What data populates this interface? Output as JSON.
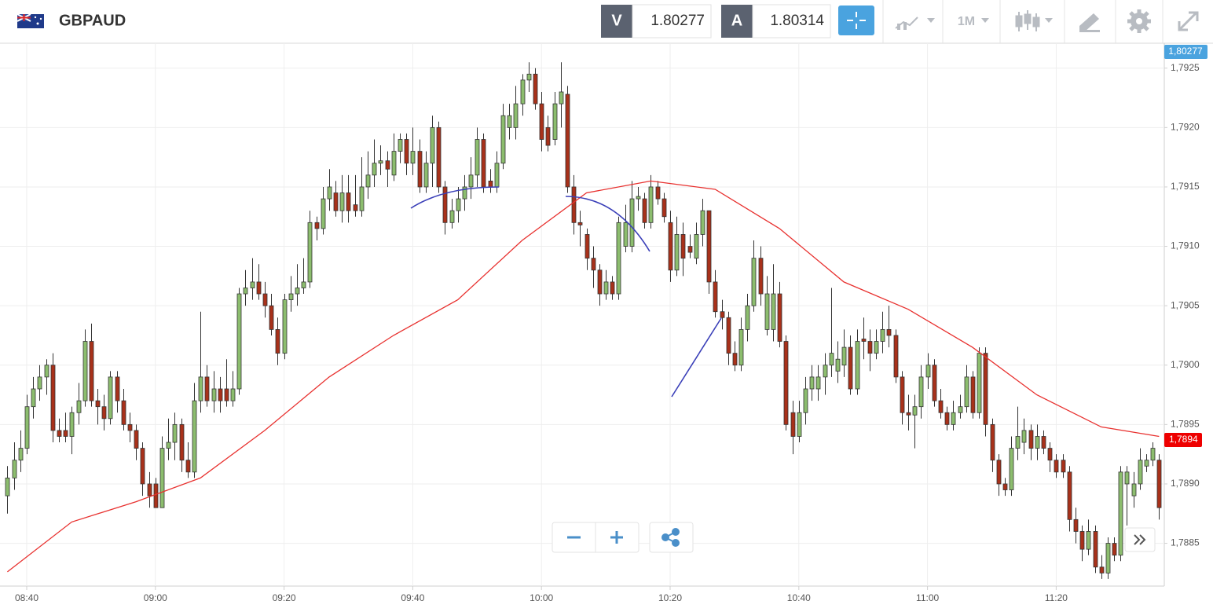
{
  "header": {
    "symbol": "GBPAUD",
    "bid_label": "V",
    "bid": "1.80277",
    "ask_label": "A",
    "ask": "1.80314",
    "timeframe": "1M"
  },
  "chart_data": {
    "type": "candlestick",
    "up_color": "#8cbd6e",
    "down_color": "#a8311a",
    "grid": true,
    "xlim": [
      -1.15,
      179.8
    ],
    "ylim": [
      1.78814,
      1.79271
    ],
    "xticks": [
      {
        "value": 3,
        "label": "08:40"
      },
      {
        "value": 23,
        "label": "09:00"
      },
      {
        "value": 43,
        "label": "09:20"
      },
      {
        "value": 63,
        "label": "09:40"
      },
      {
        "value": 83,
        "label": "10:00"
      },
      {
        "value": 103,
        "label": "10:20"
      },
      {
        "value": 123,
        "label": "10:40"
      },
      {
        "value": 143,
        "label": "11:00"
      },
      {
        "value": 163,
        "label": "11:20"
      }
    ],
    "yticks": [
      {
        "value": 1.7885,
        "label": "1,7885"
      },
      {
        "value": 1.789,
        "label": "1,7890"
      },
      {
        "value": 1.7895,
        "label": "1,7895"
      },
      {
        "value": 1.79,
        "label": "1,7900"
      },
      {
        "value": 1.7905,
        "label": "1,7905"
      },
      {
        "value": 1.791,
        "label": "1,7910"
      },
      {
        "value": 1.7915,
        "label": "1,7915"
      },
      {
        "value": 1.792,
        "label": "1,7920"
      },
      {
        "value": 1.7925,
        "label": "1,7925"
      }
    ],
    "price_tag": "1,80277",
    "ma_tag": {
      "value": 1.78937,
      "label": "1,7894"
    },
    "ma": {
      "color": "#e8312f",
      "x": [
        0,
        10,
        20,
        30,
        40,
        50,
        60,
        70,
        80,
        90,
        100,
        110,
        120,
        130,
        140,
        150,
        160,
        170,
        179
      ],
      "values": [
        1.78826,
        1.78868,
        1.78885,
        1.78905,
        1.78945,
        1.7899,
        1.79025,
        1.79055,
        1.79105,
        1.79145,
        1.79155,
        1.79148,
        1.79115,
        1.7907,
        1.79047,
        1.79015,
        1.78975,
        1.78948,
        1.7894
      ]
    },
    "ohlc": [
      [
        1.7889,
        1.78915,
        1.78875,
        1.78905
      ],
      [
        1.78905,
        1.78935,
        1.78895,
        1.7892
      ],
      [
        1.7892,
        1.78945,
        1.7891,
        1.7893
      ],
      [
        1.7893,
        1.78975,
        1.78925,
        1.78965
      ],
      [
        1.78965,
        1.7899,
        1.78955,
        1.7898
      ],
      [
        1.7898,
        1.79,
        1.7897,
        1.7899
      ],
      [
        1.7899,
        1.79005,
        1.78975,
        1.79
      ],
      [
        1.79,
        1.7901,
        1.78935,
        1.78945
      ],
      [
        1.78945,
        1.78955,
        1.78935,
        1.7894
      ],
      [
        1.78945,
        1.7896,
        1.78935,
        1.7894
      ],
      [
        1.7894,
        1.78965,
        1.78925,
        1.7896
      ],
      [
        1.7896,
        1.78985,
        1.7895,
        1.7897
      ],
      [
        1.7897,
        1.7903,
        1.78965,
        1.7902
      ],
      [
        1.7902,
        1.79035,
        1.78965,
        1.7897
      ],
      [
        1.7897,
        1.7898,
        1.7895,
        1.78965
      ],
      [
        1.78965,
        1.78975,
        1.78945,
        1.78955
      ],
      [
        1.78955,
        1.78995,
        1.7895,
        1.7899
      ],
      [
        1.7899,
        1.78995,
        1.7896,
        1.7897
      ],
      [
        1.7897,
        1.7898,
        1.78945,
        1.7895
      ],
      [
        1.7895,
        1.7896,
        1.78935,
        1.78945
      ],
      [
        1.78945,
        1.7895,
        1.7892,
        1.7893
      ],
      [
        1.7893,
        1.78935,
        1.7889,
        1.789
      ],
      [
        1.789,
        1.7891,
        1.7888,
        1.7889
      ],
      [
        1.789,
        1.78905,
        1.7888,
        1.7888
      ],
      [
        1.7888,
        1.7894,
        1.7888,
        1.7893
      ],
      [
        1.7893,
        1.78955,
        1.7892,
        1.78935
      ],
      [
        1.78935,
        1.7896,
        1.7892,
        1.7895
      ],
      [
        1.7895,
        1.78955,
        1.7891,
        1.7892
      ],
      [
        1.7892,
        1.78935,
        1.78905,
        1.7891
      ],
      [
        1.7891,
        1.78985,
        1.78905,
        1.7897
      ],
      [
        1.7897,
        1.79045,
        1.7896,
        1.7899
      ],
      [
        1.7899,
        1.79,
        1.78965,
        1.7897
      ],
      [
        1.7897,
        1.78995,
        1.7896,
        1.7898
      ],
      [
        1.7898,
        1.7899,
        1.7896,
        1.7897
      ],
      [
        1.7898,
        1.79005,
        1.78965,
        1.7897
      ],
      [
        1.7897,
        1.78995,
        1.78965,
        1.7898
      ],
      [
        1.7898,
        1.79065,
        1.78975,
        1.7906
      ],
      [
        1.7906,
        1.7908,
        1.7905,
        1.79065
      ],
      [
        1.79065,
        1.7909,
        1.79055,
        1.7907
      ],
      [
        1.7907,
        1.79085,
        1.79055,
        1.7906
      ],
      [
        1.7906,
        1.7907,
        1.7904,
        1.7905
      ],
      [
        1.7905,
        1.7906,
        1.79025,
        1.7903
      ],
      [
        1.7903,
        1.7904,
        1.79,
        1.7901
      ],
      [
        1.7901,
        1.7906,
        1.79005,
        1.79055
      ],
      [
        1.79055,
        1.79075,
        1.79045,
        1.7906
      ],
      [
        1.7906,
        1.79085,
        1.7905,
        1.79065
      ],
      [
        1.79065,
        1.7909,
        1.7906,
        1.7907
      ],
      [
        1.7907,
        1.7913,
        1.79065,
        1.7912
      ],
      [
        1.7912,
        1.79125,
        1.79105,
        1.79115
      ],
      [
        1.79115,
        1.7915,
        1.7911,
        1.7914
      ],
      [
        1.7914,
        1.79165,
        1.7913,
        1.7915
      ],
      [
        1.79145,
        1.79155,
        1.79125,
        1.7913
      ],
      [
        1.7913,
        1.7916,
        1.7912,
        1.79145
      ],
      [
        1.79145,
        1.7916,
        1.7912,
        1.7913
      ],
      [
        1.79135,
        1.7916,
        1.79125,
        1.7913
      ],
      [
        1.7913,
        1.79175,
        1.79125,
        1.7915
      ],
      [
        1.7915,
        1.7918,
        1.7914,
        1.7916
      ],
      [
        1.7916,
        1.7919,
        1.7915,
        1.7917
      ],
      [
        1.7917,
        1.79185,
        1.7916,
        1.79172
      ],
      [
        1.79172,
        1.7918,
        1.7915,
        1.79165
      ],
      [
        1.7916,
        1.79195,
        1.79155,
        1.7918
      ],
      [
        1.7918,
        1.79195,
        1.7917,
        1.7919
      ],
      [
        1.7919,
        1.79195,
        1.7916,
        1.7917
      ],
      [
        1.7917,
        1.792,
        1.7916,
        1.7918
      ],
      [
        1.7918,
        1.7919,
        1.79145,
        1.7915
      ],
      [
        1.7915,
        1.7918,
        1.79145,
        1.7917
      ],
      [
        1.7917,
        1.7921,
        1.7915,
        1.792
      ],
      [
        1.792,
        1.79205,
        1.79145,
        1.7915
      ],
      [
        1.7915,
        1.79155,
        1.7911,
        1.7912
      ],
      [
        1.7912,
        1.7914,
        1.79115,
        1.7913
      ],
      [
        1.7913,
        1.7915,
        1.7912,
        1.7914
      ],
      [
        1.7914,
        1.7916,
        1.7913,
        1.7915
      ],
      [
        1.7915,
        1.79175,
        1.7914,
        1.7916
      ],
      [
        1.7916,
        1.792,
        1.7915,
        1.7919
      ],
      [
        1.7919,
        1.79195,
        1.79145,
        1.7915
      ],
      [
        1.79155,
        1.79165,
        1.79145,
        1.7915
      ],
      [
        1.7915,
        1.7918,
        1.79145,
        1.7917
      ],
      [
        1.7917,
        1.7922,
        1.79165,
        1.7921
      ],
      [
        1.792,
        1.7922,
        1.7919,
        1.7921
      ],
      [
        1.792,
        1.79235,
        1.7919,
        1.7922
      ],
      [
        1.7922,
        1.79245,
        1.7921,
        1.7924
      ],
      [
        1.7924,
        1.79255,
        1.7923,
        1.79245
      ],
      [
        1.79245,
        1.7925,
        1.79215,
        1.7922
      ],
      [
        1.7922,
        1.7923,
        1.7918,
        1.7919
      ],
      [
        1.792,
        1.7921,
        1.7918,
        1.79185
      ],
      [
        1.7919,
        1.7923,
        1.79185,
        1.7922
      ],
      [
        1.7922,
        1.79255,
        1.792,
        1.7923
      ],
      [
        1.79228,
        1.79235,
        1.79145,
        1.7915
      ],
      [
        1.7915,
        1.7916,
        1.7911,
        1.7912
      ],
      [
        1.7912,
        1.7913,
        1.791,
        1.79118
      ],
      [
        1.7911,
        1.79115,
        1.7908,
        1.7909
      ],
      [
        1.7909,
        1.791,
        1.79065,
        1.7908
      ],
      [
        1.7908,
        1.79085,
        1.7905,
        1.7906
      ],
      [
        1.7906,
        1.7908,
        1.79055,
        1.7907
      ],
      [
        1.7907,
        1.79075,
        1.79055,
        1.7906
      ],
      [
        1.7906,
        1.79125,
        1.79055,
        1.7912
      ],
      [
        1.791,
        1.79135,
        1.79095,
        1.7912
      ],
      [
        1.791,
        1.79155,
        1.79095,
        1.7914
      ],
      [
        1.7914,
        1.7915,
        1.7913,
        1.79142
      ],
      [
        1.7914,
        1.79145,
        1.79115,
        1.7912
      ],
      [
        1.7912,
        1.7916,
        1.79115,
        1.7915
      ],
      [
        1.7915,
        1.79155,
        1.79135,
        1.7914
      ],
      [
        1.7914,
        1.79145,
        1.7912,
        1.79125
      ],
      [
        1.7912,
        1.7913,
        1.7907,
        1.7908
      ],
      [
        1.7908,
        1.79125,
        1.79075,
        1.7911
      ],
      [
        1.7911,
        1.7912,
        1.79075,
        1.7909
      ],
      [
        1.791,
        1.7911,
        1.7909,
        1.79095
      ],
      [
        1.7909,
        1.7912,
        1.79085,
        1.7911
      ],
      [
        1.7911,
        1.7914,
        1.791,
        1.7913
      ],
      [
        1.7913,
        1.7913,
        1.7906,
        1.7907
      ],
      [
        1.7907,
        1.7908,
        1.7904,
        1.79045
      ],
      [
        1.79045,
        1.79055,
        1.7903,
        1.7904
      ],
      [
        1.7904,
        1.79045,
        1.79,
        1.7901
      ],
      [
        1.7901,
        1.7902,
        1.78995,
        1.79
      ],
      [
        1.79,
        1.7904,
        1.78995,
        1.7903
      ],
      [
        1.7903,
        1.7906,
        1.7902,
        1.7905
      ],
      [
        1.7905,
        1.79105,
        1.79045,
        1.7909
      ],
      [
        1.7909,
        1.791,
        1.7905,
        1.7906
      ],
      [
        1.7903,
        1.79075,
        1.79025,
        1.7906
      ],
      [
        1.7903,
        1.79085,
        1.7902,
        1.7906
      ],
      [
        1.7906,
        1.7907,
        1.79015,
        1.7902
      ],
      [
        1.7902,
        1.79025,
        1.78945,
        1.7895
      ],
      [
        1.7896,
        1.7897,
        1.78925,
        1.7894
      ],
      [
        1.7894,
        1.7897,
        1.78935,
        1.7896
      ],
      [
        1.7896,
        1.7899,
        1.7895,
        1.7898
      ],
      [
        1.7898,
        1.79,
        1.7897,
        1.7899
      ],
      [
        1.7898,
        1.79,
        1.7897,
        1.7899
      ],
      [
        1.7899,
        1.7901,
        1.78975,
        1.79
      ],
      [
        1.79,
        1.79065,
        1.7899,
        1.7901
      ],
      [
        1.78995,
        1.7902,
        1.78985,
        1.79005
      ],
      [
        1.79,
        1.7903,
        1.7899,
        1.79015
      ],
      [
        1.79015,
        1.79025,
        1.78975,
        1.7898
      ],
      [
        1.7898,
        1.7903,
        1.78975,
        1.7902
      ],
      [
        1.79022,
        1.7904,
        1.79005,
        1.7902
      ],
      [
        1.7902,
        1.7903,
        1.78995,
        1.7901
      ],
      [
        1.7901,
        1.7903,
        1.79005,
        1.7902
      ],
      [
        1.7902,
        1.79045,
        1.7901,
        1.7903
      ],
      [
        1.7903,
        1.7905,
        1.79015,
        1.79025
      ],
      [
        1.79025,
        1.7903,
        1.78985,
        1.7899
      ],
      [
        1.7899,
        1.78995,
        1.7895,
        1.7896
      ],
      [
        1.7896,
        1.78975,
        1.78945,
        1.78958
      ],
      [
        1.78958,
        1.78975,
        1.7893,
        1.78965
      ],
      [
        1.78965,
        1.79,
        1.78955,
        1.7899
      ],
      [
        1.7899,
        1.7901,
        1.7898,
        1.79
      ],
      [
        1.79,
        1.79005,
        1.78965,
        1.7897
      ],
      [
        1.7897,
        1.7898,
        1.78955,
        1.7896
      ],
      [
        1.7896,
        1.78965,
        1.78945,
        1.7895
      ],
      [
        1.7895,
        1.7897,
        1.78945,
        1.7896
      ],
      [
        1.7896,
        1.78975,
        1.78955,
        1.78965
      ],
      [
        1.78965,
        1.79,
        1.7896,
        1.7899
      ],
      [
        1.7899,
        1.78995,
        1.78955,
        1.7896
      ],
      [
        1.7896,
        1.79015,
        1.78955,
        1.7901
      ],
      [
        1.7901,
        1.79015,
        1.7894,
        1.7895
      ],
      [
        1.7895,
        1.78955,
        1.7891,
        1.7892
      ],
      [
        1.7892,
        1.78925,
        1.7889,
        1.789
      ],
      [
        1.789,
        1.78905,
        1.7889,
        1.78895
      ],
      [
        1.78895,
        1.7894,
        1.7889,
        1.7893
      ],
      [
        1.7893,
        1.78965,
        1.7892,
        1.7894
      ],
      [
        1.78935,
        1.78955,
        1.78925,
        1.78945
      ],
      [
        1.78945,
        1.7895,
        1.7892,
        1.7893
      ],
      [
        1.7893,
        1.7895,
        1.7892,
        1.7894
      ],
      [
        1.7894,
        1.78945,
        1.78925,
        1.7893
      ],
      [
        1.7893,
        1.78935,
        1.7891,
        1.7892
      ],
      [
        1.7892,
        1.78925,
        1.78905,
        1.7891
      ],
      [
        1.7892,
        1.78925,
        1.78905,
        1.7891
      ],
      [
        1.7891,
        1.78915,
        1.7886,
        1.7887
      ],
      [
        1.7887,
        1.7888,
        1.7885,
        1.7886
      ],
      [
        1.7886,
        1.78865,
        1.78835,
        1.78845
      ],
      [
        1.78845,
        1.7887,
        1.7884,
        1.7886
      ],
      [
        1.7886,
        1.78865,
        1.78825,
        1.7883
      ],
      [
        1.7883,
        1.7884,
        1.7882,
        1.78825
      ],
      [
        1.78825,
        1.78855,
        1.7882,
        1.7885
      ],
      [
        1.7885,
        1.78855,
        1.78835,
        1.7884
      ],
      [
        1.7884,
        1.78915,
        1.78835,
        1.7891
      ],
      [
        1.789,
        1.78915,
        1.78865,
        1.7891
      ],
      [
        1.7889,
        1.7891,
        1.7888,
        1.789
      ],
      [
        1.789,
        1.7893,
        1.78895,
        1.7892
      ],
      [
        1.78915,
        1.78925,
        1.7891,
        1.7892
      ],
      [
        1.7892,
        1.78935,
        1.78915,
        1.7893
      ],
      [
        1.7892,
        1.78925,
        1.7887,
        1.7888
      ]
    ]
  }
}
